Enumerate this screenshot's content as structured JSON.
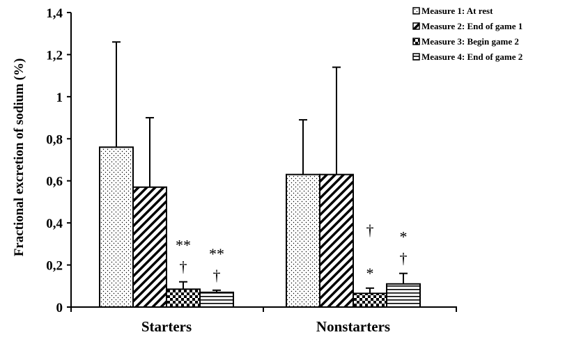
{
  "chart_data": {
    "type": "bar",
    "ylabel": "Fractional excretion of sodium (%)",
    "xlabel": "",
    "ylim": [
      0,
      1.4
    ],
    "yticks": [
      "0",
      "0,2",
      "0,4",
      "0,6",
      "0,8",
      "1",
      "1,2",
      "1,4"
    ],
    "categories": [
      "Starters",
      "Nonstarters"
    ],
    "legend_position": "top-right",
    "series": [
      {
        "name": "Measure 1: At rest",
        "pattern": "dots",
        "values": [
          0.76,
          0.63
        ],
        "error_upper": [
          1.26,
          0.89
        ]
      },
      {
        "name": "Measure 2: End of game 1",
        "pattern": "diagonal",
        "values": [
          0.57,
          0.63
        ],
        "error_upper": [
          0.9,
          1.14
        ]
      },
      {
        "name": "Measure 3: Begin game 2",
        "pattern": "checker",
        "values": [
          0.085,
          0.065
        ],
        "error_upper": [
          0.12,
          0.09
        ]
      },
      {
        "name": "Measure 4: End of game 2",
        "pattern": "horizontal",
        "values": [
          0.07,
          0.11
        ],
        "error_upper": [
          0.08,
          0.16
        ]
      }
    ],
    "annotations": [
      {
        "category": "Starters",
        "series": 2,
        "lines": [
          "**",
          "†"
        ]
      },
      {
        "category": "Starters",
        "series": 3,
        "lines": [
          "**",
          "†"
        ]
      },
      {
        "category": "Nonstarters",
        "series": 2,
        "lines": [
          "†",
          "",
          "*"
        ]
      },
      {
        "category": "Nonstarters",
        "series": 3,
        "lines": [
          "*",
          "†"
        ]
      }
    ]
  }
}
